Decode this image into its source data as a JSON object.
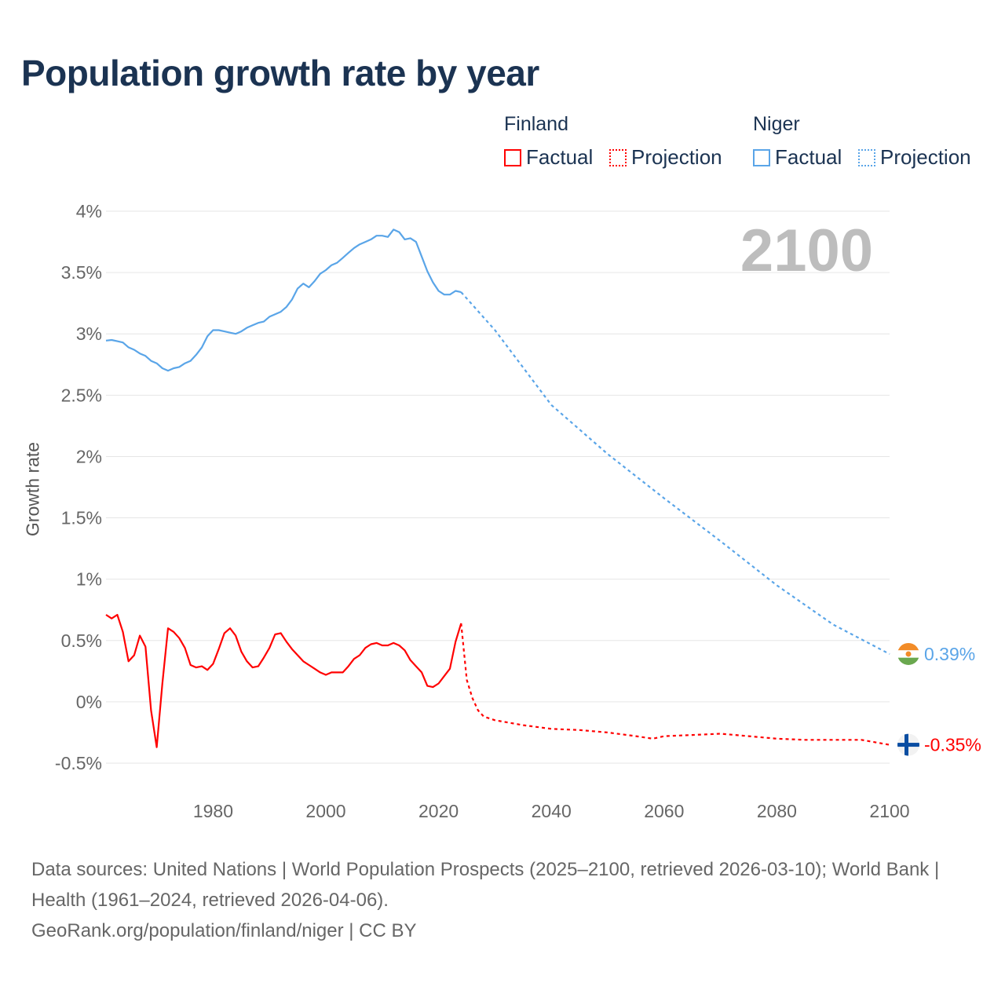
{
  "title": "Population growth rate by year",
  "legend": {
    "groups": [
      {
        "name": "Finland",
        "color": "#ff0000",
        "items": [
          "Factual",
          "Projection"
        ]
      },
      {
        "name": "Niger",
        "color": "#5aa5e8",
        "items": [
          "Factual",
          "Projection"
        ]
      }
    ]
  },
  "current_year": "2100",
  "end_labels": {
    "niger": "0.39%",
    "finland": "-0.35%"
  },
  "footer": {
    "sources": "Data sources: United Nations | World Population Prospects (2025–2100, retrieved 2026-03-10); World Bank | Health (1961–2024, retrieved 2026-04-06).",
    "credit": "GeoRank.org/population/finland/niger | CC BY"
  },
  "chart_data": {
    "type": "line",
    "title": "Population growth rate by year",
    "xlabel": "",
    "ylabel": "Growth rate",
    "xlim": [
      1961,
      2100
    ],
    "ylim": [
      -0.5,
      4
    ],
    "x_ticks": [
      1980,
      2000,
      2020,
      2040,
      2060,
      2080,
      2100
    ],
    "y_ticks": [
      -0.5,
      0,
      0.5,
      1,
      1.5,
      2,
      2.5,
      3,
      3.5,
      4
    ],
    "y_tick_labels": [
      "-0.5%",
      "0%",
      "0.5%",
      "1%",
      "1.5%",
      "2%",
      "2.5%",
      "3%",
      "3.5%",
      "4%"
    ],
    "grid": true,
    "legend_position": "top-right",
    "series": [
      {
        "name": "Finland Factual",
        "color": "#ff0000",
        "style": "solid",
        "x": [
          1961,
          1962,
          1963,
          1964,
          1965,
          1966,
          1967,
          1968,
          1969,
          1970,
          1971,
          1972,
          1973,
          1974,
          1975,
          1976,
          1977,
          1978,
          1979,
          1980,
          1981,
          1982,
          1983,
          1984,
          1985,
          1986,
          1987,
          1988,
          1989,
          1990,
          1991,
          1992,
          1993,
          1994,
          1995,
          1996,
          1997,
          1998,
          1999,
          2000,
          2001,
          2002,
          2003,
          2004,
          2005,
          2006,
          2007,
          2008,
          2009,
          2010,
          2011,
          2012,
          2013,
          2014,
          2015,
          2016,
          2017,
          2018,
          2019,
          2020,
          2021,
          2022,
          2023,
          2024
        ],
        "values": [
          0.71,
          0.68,
          0.71,
          0.57,
          0.33,
          0.38,
          0.54,
          0.45,
          -0.07,
          -0.37,
          0.15,
          0.6,
          0.57,
          0.52,
          0.44,
          0.3,
          0.28,
          0.29,
          0.26,
          0.31,
          0.43,
          0.56,
          0.6,
          0.54,
          0.41,
          0.33,
          0.28,
          0.29,
          0.36,
          0.44,
          0.55,
          0.56,
          0.49,
          0.43,
          0.38,
          0.33,
          0.3,
          0.27,
          0.24,
          0.22,
          0.24,
          0.24,
          0.24,
          0.29,
          0.35,
          0.38,
          0.44,
          0.47,
          0.48,
          0.46,
          0.46,
          0.48,
          0.46,
          0.42,
          0.34,
          0.29,
          0.24,
          0.13,
          0.12,
          0.15,
          0.21,
          0.27,
          0.49,
          0.64
        ]
      },
      {
        "name": "Finland Projection",
        "color": "#ff0000",
        "style": "dotted",
        "x": [
          2024,
          2025,
          2026,
          2027,
          2028,
          2030,
          2035,
          2040,
          2045,
          2050,
          2055,
          2058,
          2060,
          2065,
          2070,
          2075,
          2080,
          2085,
          2090,
          2095,
          2100
        ],
        "values": [
          0.64,
          0.18,
          0.03,
          -0.07,
          -0.12,
          -0.15,
          -0.19,
          -0.22,
          -0.23,
          -0.25,
          -0.28,
          -0.3,
          -0.28,
          -0.27,
          -0.26,
          -0.28,
          -0.3,
          -0.31,
          -0.31,
          -0.31,
          -0.35
        ]
      },
      {
        "name": "Niger Factual",
        "color": "#5aa5e8",
        "style": "solid",
        "x": [
          1961,
          1962,
          1963,
          1964,
          1965,
          1966,
          1967,
          1968,
          1969,
          1970,
          1971,
          1972,
          1973,
          1974,
          1975,
          1976,
          1977,
          1978,
          1979,
          1980,
          1981,
          1982,
          1983,
          1984,
          1985,
          1986,
          1987,
          1988,
          1989,
          1990,
          1991,
          1992,
          1993,
          1994,
          1995,
          1996,
          1997,
          1998,
          1999,
          2000,
          2001,
          2002,
          2003,
          2004,
          2005,
          2006,
          2007,
          2008,
          2009,
          2010,
          2011,
          2012,
          2013,
          2014,
          2015,
          2016,
          2017,
          2018,
          2019,
          2020,
          2021,
          2022,
          2023,
          2024
        ],
        "values": [
          2.945,
          2.95,
          2.94,
          2.93,
          2.89,
          2.87,
          2.84,
          2.82,
          2.78,
          2.76,
          2.72,
          2.7,
          2.72,
          2.73,
          2.76,
          2.78,
          2.83,
          2.89,
          2.98,
          3.03,
          3.03,
          3.02,
          3.01,
          3.0,
          3.02,
          3.05,
          3.07,
          3.09,
          3.1,
          3.14,
          3.16,
          3.18,
          3.22,
          3.28,
          3.37,
          3.41,
          3.38,
          3.43,
          3.49,
          3.52,
          3.56,
          3.58,
          3.62,
          3.66,
          3.7,
          3.73,
          3.75,
          3.77,
          3.8,
          3.8,
          3.79,
          3.85,
          3.83,
          3.77,
          3.78,
          3.75,
          3.63,
          3.51,
          3.42,
          3.35,
          3.32,
          3.32,
          3.35,
          3.34
        ]
      },
      {
        "name": "Niger Projection",
        "color": "#5aa5e8",
        "style": "dotted",
        "x": [
          2024,
          2030,
          2040,
          2050,
          2060,
          2070,
          2080,
          2090,
          2100
        ],
        "values": [
          3.34,
          3.03,
          2.42,
          2.02,
          1.66,
          1.31,
          0.95,
          0.63,
          0.39
        ]
      }
    ]
  }
}
